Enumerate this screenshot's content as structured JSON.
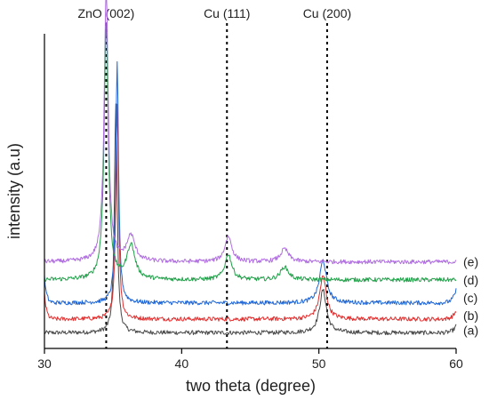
{
  "chart_data": {
    "type": "line",
    "title": "",
    "xlabel": "two theta (degree)",
    "ylabel": "intensity (a.u)",
    "xlim": [
      30,
      60
    ],
    "x_ticks": [
      "30",
      "40",
      "50",
      "60"
    ],
    "y_ticks_shown": false,
    "grid": false,
    "reference_lines": [
      {
        "label": "ZnO (002)",
        "x": 34.5
      },
      {
        "label": "Cu (111)",
        "x": 43.3
      },
      {
        "label": "Cu (200)",
        "x": 50.6
      }
    ],
    "series": [
      {
        "name": "(a)",
        "color": "#4a4a4a",
        "baseline": 1.0,
        "noise": 0.5,
        "start_bump": 0,
        "end_bump": 0.8,
        "peaks": [
          {
            "x": 35.2,
            "height": 27,
            "width": 0.12
          },
          {
            "x": 50.3,
            "height": 5,
            "width": 0.3
          }
        ]
      },
      {
        "name": "(b)",
        "color": "#e03030",
        "baseline": 2.6,
        "noise": 0.5,
        "start_bump": 3,
        "end_bump": 1,
        "peaks": [
          {
            "x": 35.3,
            "height": 25,
            "width": 0.12
          },
          {
            "x": 50.3,
            "height": 5,
            "width": 0.3
          }
        ]
      },
      {
        "name": "(c)",
        "color": "#1f66d6",
        "baseline": 4.5,
        "noise": 0.5,
        "start_bump": 3,
        "end_bump": 1.5,
        "peaks": [
          {
            "x": 35.3,
            "height": 28,
            "width": 0.12
          },
          {
            "x": 50.3,
            "height": 5,
            "width": 0.3
          }
        ]
      },
      {
        "name": "(d)",
        "color": "#22a04a",
        "baseline": 7.2,
        "noise": 0.5,
        "start_bump": 0,
        "end_bump": 0,
        "peaks": [
          {
            "x": 34.5,
            "height": 30,
            "width": 0.18
          },
          {
            "x": 36.3,
            "height": 4,
            "width": 0.35
          },
          {
            "x": 43.4,
            "height": 3,
            "width": 0.3
          },
          {
            "x": 47.5,
            "height": 1.5,
            "width": 0.35
          }
        ]
      },
      {
        "name": "(e)",
        "color": "#b06ee0",
        "baseline": 9.3,
        "noise": 0.5,
        "start_bump": 0,
        "end_bump": 0,
        "peaks": [
          {
            "x": 34.5,
            "height": 32,
            "width": 0.18
          },
          {
            "x": 36.3,
            "height": 3,
            "width": 0.35
          },
          {
            "x": 43.4,
            "height": 3,
            "width": 0.3
          },
          {
            "x": 47.5,
            "height": 1.5,
            "width": 0.35
          }
        ]
      }
    ]
  }
}
